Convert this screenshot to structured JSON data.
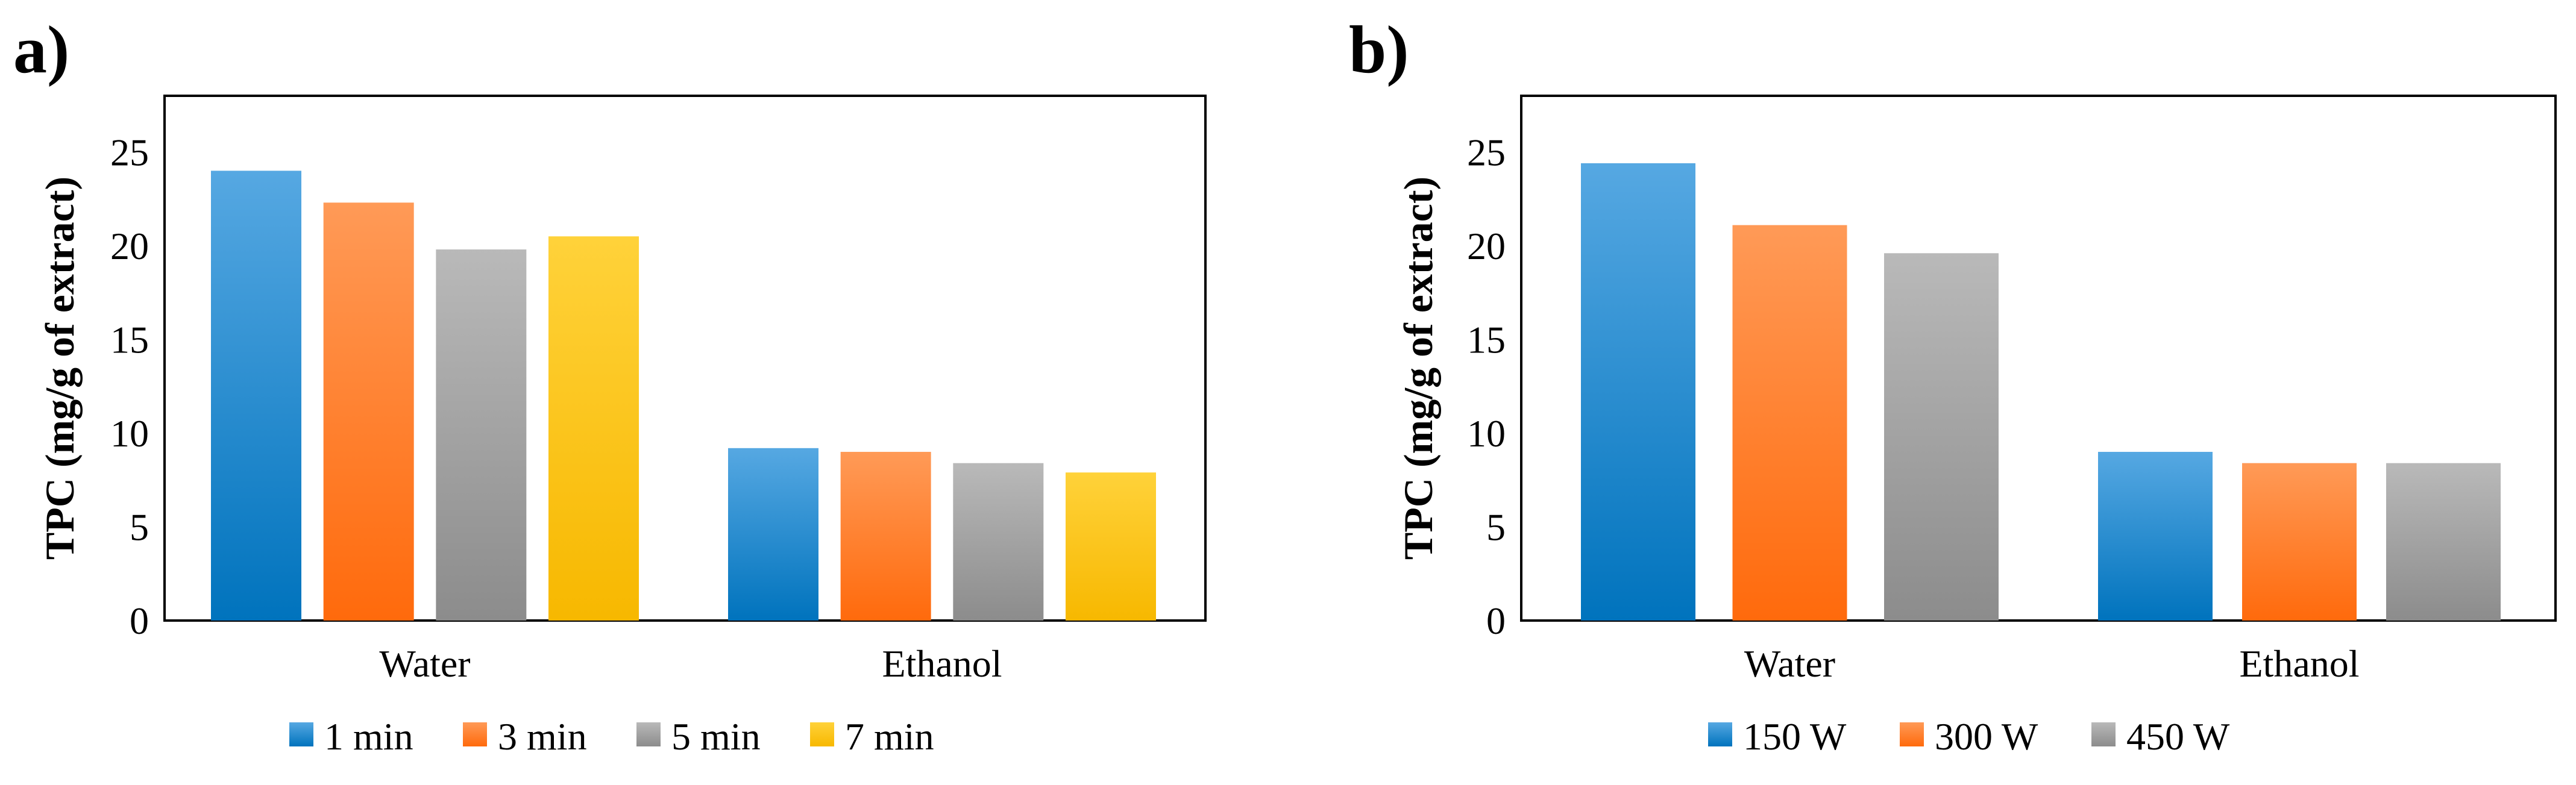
{
  "colors": {
    "blue_top": "#56a8e2",
    "blue_bottom": "#0073bd",
    "orange_top": "#ff9a57",
    "orange_bottom": "#ff6a0c",
    "gray_top": "#b9b9b9",
    "gray_bottom": "#8c8c8c",
    "yellow_top": "#ffd23a",
    "yellow_bottom": "#f7b800"
  },
  "chart_data": [
    {
      "type": "bar",
      "panel_label": "a)",
      "title": "",
      "xlabel": "",
      "ylabel": "TPC (mg/g of extract)",
      "ylim": [
        0,
        28
      ],
      "yticks": [
        0,
        5,
        10,
        15,
        20,
        25
      ],
      "grid": false,
      "legend_position": "bottom",
      "categories": [
        "Water",
        "Ethanol"
      ],
      "series": [
        {
          "name": "1 min",
          "color": "blue",
          "values": [
            24.0,
            9.2
          ]
        },
        {
          "name": "3 min",
          "color": "orange",
          "values": [
            22.3,
            9.0
          ]
        },
        {
          "name": "5 min",
          "color": "gray",
          "values": [
            19.8,
            8.4
          ]
        },
        {
          "name": "7 min",
          "color": "yellow",
          "values": [
            20.5,
            7.9
          ]
        }
      ]
    },
    {
      "type": "bar",
      "panel_label": "b)",
      "title": "",
      "xlabel": "",
      "ylabel": "TPC (mg/g of extract)",
      "ylim": [
        0,
        28
      ],
      "yticks": [
        0,
        5,
        10,
        15,
        20,
        25
      ],
      "grid": false,
      "legend_position": "bottom",
      "categories": [
        "Water",
        "Ethanol"
      ],
      "series": [
        {
          "name": "150 W",
          "color": "blue",
          "values": [
            24.4,
            9.0
          ]
        },
        {
          "name": "300 W",
          "color": "orange",
          "values": [
            21.1,
            8.4
          ]
        },
        {
          "name": "450 W",
          "color": "gray",
          "values": [
            19.6,
            8.4
          ]
        }
      ]
    }
  ]
}
